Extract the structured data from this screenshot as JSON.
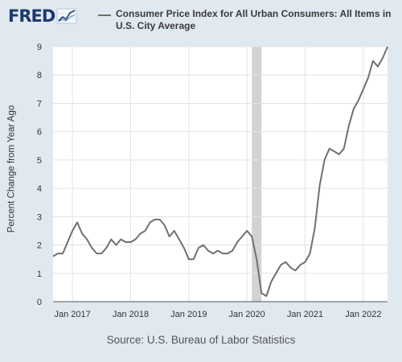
{
  "brand": {
    "logo_text": "FRED",
    "logo_icon": "trend-graph-icon"
  },
  "legend": {
    "series_label": "Consumer Price Index for All Urban Consumers: All Items in U.S. City Average",
    "color": "#707070"
  },
  "source": "Source: U.S. Bureau of Labor Statistics",
  "chart_data": {
    "type": "line",
    "ylabel": "Percent Change from Year Ago",
    "ylim": [
      0,
      9
    ],
    "yticks": [
      0,
      1,
      2,
      3,
      4,
      5,
      6,
      7,
      8,
      9
    ],
    "xlim": [
      "2016-09",
      "2022-06"
    ],
    "xticks": [
      "Jan 2017",
      "Jan 2018",
      "Jan 2019",
      "Jan 2020",
      "Jan 2021",
      "Jan 2022"
    ],
    "grid": true,
    "recession": {
      "start": "2020-02",
      "end": "2020-04",
      "color": "#d3d3d3"
    },
    "series": [
      {
        "color": "#707070",
        "x": [
          "2016-09",
          "2016-10",
          "2016-11",
          "2016-12",
          "2017-01",
          "2017-02",
          "2017-03",
          "2017-04",
          "2017-05",
          "2017-06",
          "2017-07",
          "2017-08",
          "2017-09",
          "2017-10",
          "2017-11",
          "2017-12",
          "2018-01",
          "2018-02",
          "2018-03",
          "2018-04",
          "2018-05",
          "2018-06",
          "2018-07",
          "2018-08",
          "2018-09",
          "2018-10",
          "2018-11",
          "2018-12",
          "2019-01",
          "2019-02",
          "2019-03",
          "2019-04",
          "2019-05",
          "2019-06",
          "2019-07",
          "2019-08",
          "2019-09",
          "2019-10",
          "2019-11",
          "2019-12",
          "2020-01",
          "2020-02",
          "2020-03",
          "2020-04",
          "2020-05",
          "2020-06",
          "2020-07",
          "2020-08",
          "2020-09",
          "2020-10",
          "2020-11",
          "2020-12",
          "2021-01",
          "2021-02",
          "2021-03",
          "2021-04",
          "2021-05",
          "2021-06",
          "2021-07",
          "2021-08",
          "2021-09",
          "2021-10",
          "2021-11",
          "2021-12",
          "2022-01",
          "2022-02",
          "2022-03",
          "2022-04",
          "2022-05",
          "2022-06"
        ],
        "values": [
          1.6,
          1.7,
          1.7,
          2.1,
          2.5,
          2.8,
          2.4,
          2.2,
          1.9,
          1.7,
          1.7,
          1.9,
          2.2,
          2.0,
          2.2,
          2.1,
          2.1,
          2.2,
          2.4,
          2.5,
          2.8,
          2.9,
          2.9,
          2.7,
          2.3,
          2.5,
          2.2,
          1.9,
          1.5,
          1.5,
          1.9,
          2.0,
          1.8,
          1.7,
          1.8,
          1.7,
          1.7,
          1.8,
          2.1,
          2.3,
          2.5,
          2.3,
          1.5,
          0.3,
          0.2,
          0.7,
          1.0,
          1.3,
          1.4,
          1.2,
          1.1,
          1.3,
          1.4,
          1.7,
          2.6,
          4.1,
          5.0,
          5.4,
          5.3,
          5.2,
          5.4,
          6.2,
          6.8,
          7.1,
          7.5,
          7.9,
          8.5,
          8.3,
          8.6,
          9.0
        ]
      }
    ]
  }
}
